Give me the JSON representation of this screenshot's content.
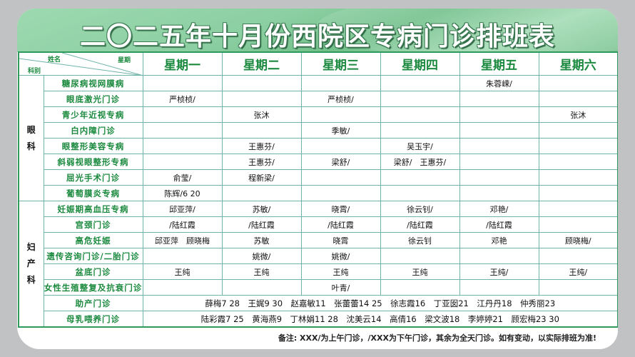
{
  "title": "二〇二五年十月份西院区专病门诊排班表",
  "header": {
    "name_label": "姓名",
    "weekday_label": "星期",
    "dept_label": "科别",
    "days": [
      "星期一",
      "星期二",
      "星期三",
      "星期四",
      "星期五",
      "星期六"
    ]
  },
  "departments": [
    {
      "name": "眼科",
      "rows": [
        {
          "clinic": "糖尿病视网膜病",
          "cells": [
            "",
            "",
            "",
            "",
            "朱蓉嵘/",
            ""
          ]
        },
        {
          "clinic": "眼底激光门诊",
          "cells": [
            "严桢桢/",
            "",
            "严桢桢/",
            "",
            "",
            ""
          ]
        },
        {
          "clinic": "青少年近视专病",
          "cells": [
            "",
            "张沐",
            "",
            "",
            "",
            "张沐"
          ]
        },
        {
          "clinic": "白内障门诊",
          "cells": [
            "",
            "",
            "季敏/",
            "",
            "",
            ""
          ]
        },
        {
          "clinic": "眼整形美容专病",
          "cells": [
            "",
            "王惠芬/",
            "",
            "吴玉宇/",
            "",
            ""
          ]
        },
        {
          "clinic": "斜弱视眼整形专病",
          "cells": [
            "",
            "王惠芬/",
            "梁舒/",
            "梁舒/　王惠芬/",
            "",
            ""
          ]
        },
        {
          "clinic": "屈光手术门诊",
          "cells": [
            "俞莹/",
            "程新梁/",
            "",
            "",
            "",
            ""
          ]
        },
        {
          "clinic": "葡萄膜炎专病",
          "cells": [
            "陈辉/6 20",
            "",
            "",
            "",
            "",
            ""
          ]
        }
      ]
    },
    {
      "name": "妇产科",
      "rows": [
        {
          "clinic": "妊娠期高血压专病",
          "cells": [
            "邱亚萍/",
            "苏敏/",
            "晓霄/",
            "徐云钊/",
            "邓艳/",
            ""
          ]
        },
        {
          "clinic": "宫颈门诊",
          "cells": [
            "/陆红霞",
            "/陆红霞",
            "/陆红霞",
            "/陆红霞",
            "/陆红霞",
            ""
          ]
        },
        {
          "clinic": "高危妊娠",
          "cells": [
            "邱亚萍　顾晓梅",
            "苏敏",
            "晓霄",
            "徐云钊",
            "邓艳",
            "顾晓梅/"
          ]
        },
        {
          "clinic": "遗传咨询门诊/二胎门诊",
          "cells": [
            "",
            "姚微/",
            "姚微/",
            "",
            "",
            ""
          ]
        },
        {
          "clinic": "盆底门诊",
          "cells": [
            "王纯",
            "王纯",
            "王纯",
            "王纯",
            "王纯/",
            "王纯/"
          ]
        },
        {
          "clinic": "女性生殖整复及抗衰门诊",
          "cells": [
            "",
            "",
            "叶青/",
            "",
            "",
            ""
          ]
        },
        {
          "clinic": "助产门诊",
          "span": "薛梅7 28　王娓9 30　赵嘉敏11　张蕾蕾14 25　徐志霞16　丁亚囡21　江丹丹18　仲秀丽23"
        },
        {
          "clinic": "母乳喂养门诊",
          "span": "陆彩霞7 25　黄海燕9　丁林娟11 28　沈美云14　高倩16　梁文波18　李婷婷21　顾宏梅23 30"
        }
      ]
    }
  ],
  "note": "备注: XXX/为上午门诊，/XXX为下午门诊，其余为全天门诊。如有变动，以实际排班为准!",
  "colors": {
    "accent": "#1b8a3f",
    "grid": "#6fb3a9",
    "banner": "#8ccfa2",
    "background": "#c1c2c4"
  }
}
